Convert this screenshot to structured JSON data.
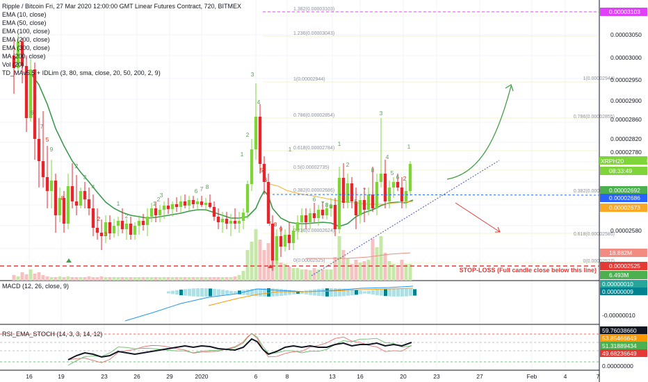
{
  "header": {
    "title": "Ripple / Bitcoin Fri, 27 Mar 2020 12:00:00 GMT Linear Futures Contract, 720, BITMEX",
    "indicators": [
      "EMA (10, close)",
      "EMA (50, close)",
      "EMA (100, close)",
      "EMA (200, close)",
      "EMA (300, close)",
      "MA (200, close)",
      "Vol (20)",
      "TD_MAv5.5 + IDLim (3, 80, sma, close, 20, 50, 200, 2, 9)"
    ]
  },
  "price_axis": {
    "ticks": [
      "0.00003050",
      "0.00003000",
      "0.00002950",
      "0.00002900",
      "0.00002860",
      "0.00002820",
      "0.00002780",
      "0.00002740",
      "0.00002620",
      "0.00002580",
      "0.00002540"
    ],
    "tags": [
      {
        "text": "0.00003103",
        "bg": "#e040fb"
      },
      {
        "text": "0.00002758",
        "bg": "#7fd43a"
      },
      {
        "text": "08:33:49",
        "bg": "#7fd43a"
      },
      {
        "text": "0.00002692",
        "bg": "#4caf50"
      },
      {
        "text": "0.00002686",
        "bg": "#2962ff"
      },
      {
        "text": "0.00002673",
        "bg": "#f9a825"
      },
      {
        "text": "18.882M",
        "bg": "#f28b82"
      },
      {
        "text": "0.00002525",
        "bg": "#e53935"
      },
      {
        "text": "6.493M",
        "bg": "#4caf50"
      }
    ],
    "symbol_tag": "XRPH20"
  },
  "fib_labels": [
    "1.382(0.00003103)",
    "1.236(0.00003043)",
    "1(0.00002944)",
    "0.786(0.00002854)",
    "0.618(0.00002784)",
    "0.5(0.00002735)",
    "0.382(0.00002686)",
    "0.236(0.00002624)",
    "0(0.00002525)",
    "1(0.00002944)",
    "0.786(0.00002855)",
    "0.382(0.00002686)",
    "0.618(0.00002585)",
    "0(0.00002527)"
  ],
  "stop_loss_label": "STOP-LOSS (Full candle close below this line)",
  "macd": {
    "label": "MACD (12, 26, close, 9)",
    "tags": [
      {
        "text": "0.00000010",
        "bg": "#26a69a"
      },
      {
        "text": "0.00000009",
        "bg": "#00838f"
      }
    ],
    "tick": "-0.00000010"
  },
  "rsi": {
    "label": "RSI_EMA_STOCH (14, 3, 3, 14, 12)",
    "tags": [
      {
        "text": "59.76038660",
        "bg": "#131722"
      },
      {
        "text": "53.85466649",
        "bg": "#ff9800"
      },
      {
        "text": "51.31889434",
        "bg": "#4caf50"
      },
      {
        "text": "49.68236649",
        "bg": "#e53935"
      }
    ],
    "tick": "0.00000000"
  },
  "time_axis": [
    "16",
    "19",
    "23",
    "26",
    "29",
    "2020",
    "6",
    "8",
    "13",
    "16",
    "20",
    "23",
    "27",
    "Feb",
    "4",
    "7"
  ],
  "chart_data": {
    "type": "candlestick",
    "title": "Ripple / Bitcoin Fri, 27 Mar 2020 12:00:00 GMT Linear Futures Contract, 720, BITMEX",
    "xlabel": "",
    "ylabel": "",
    "ylim": [
      2.52e-05,
      3.12e-05
    ],
    "grid": true,
    "series": [
      {
        "name": "EMA (50, close)"
      },
      {
        "name": "MA (200, close)"
      },
      {
        "name": "Vol (20)"
      }
    ],
    "levels": {
      "fib_1_382": 3.103e-05,
      "fib_1_236": 3.043e-05,
      "fib_1": 2.944e-05,
      "fib_0_786": 2.854e-05,
      "fib_0_618": 2.784e-05,
      "fib_0_5": 2.735e-05,
      "fib_0_382": 2.686e-05,
      "fib_0": 2.525e-05,
      "last_price": 2.758e-05
    }
  }
}
